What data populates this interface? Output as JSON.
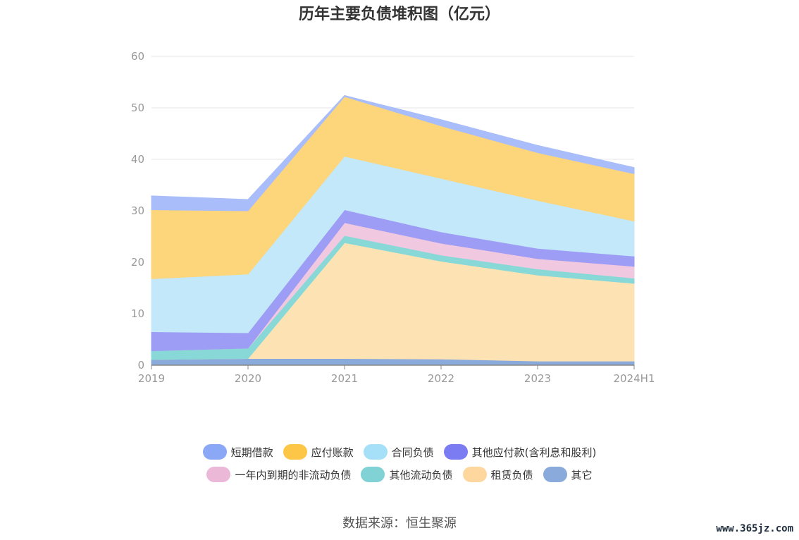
{
  "chart_data": {
    "type": "area",
    "stacked": true,
    "title": "历年主要负债堆积图（亿元）",
    "categories": [
      "2019",
      "2020",
      "2021",
      "2022",
      "2023",
      "2024H1"
    ],
    "ylim": [
      0,
      60
    ],
    "yticks": [
      "0",
      "10",
      "20",
      "30",
      "40",
      "50",
      "60"
    ],
    "grid": true,
    "legend_position": "bottom",
    "series": [
      {
        "name": "其它",
        "color": "#8aaadb",
        "values": [
          1.1,
          1.3,
          1.3,
          1.2,
          0.8,
          0.8
        ]
      },
      {
        "name": "租赁负债",
        "color": "#fde3b4",
        "values": [
          0,
          0,
          22.5,
          19.0,
          16.7,
          15.1
        ]
      },
      {
        "name": "其他流动负债",
        "color": "#88d8d8",
        "values": [
          1.7,
          2.0,
          1.4,
          1.2,
          1.2,
          1.0
        ]
      },
      {
        "name": "一年内到期的非流动负债",
        "color": "#f0c8e0",
        "values": [
          0,
          0,
          2.5,
          2.3,
          2.0,
          2.3
        ]
      },
      {
        "name": "其他应付款(含利息和股利)",
        "color": "#9d9df5",
        "values": [
          3.7,
          3.0,
          2.5,
          2.2,
          2.0,
          2.0
        ]
      },
      {
        "name": "合同负债",
        "color": "#c2e8f9",
        "values": [
          10.3,
          11.4,
          10.4,
          10.4,
          9.3,
          6.8
        ]
      },
      {
        "name": "应付账款",
        "color": "#fdd57a",
        "values": [
          13.4,
          12.3,
          11.6,
          10.2,
          9.3,
          9.2
        ]
      },
      {
        "name": "短期借款",
        "color": "#a8bdf9",
        "values": [
          2.7,
          2.2,
          0.2,
          1.2,
          1.4,
          1.2
        ]
      }
    ]
  },
  "legend": {
    "row1": [
      {
        "name": "短期借款",
        "color": "#8ba8f7"
      },
      {
        "name": "应付账款",
        "color": "#fdc647"
      },
      {
        "name": "合同负债",
        "color": "#a6dff8"
      },
      {
        "name": "其他应付款(含利息和股利)",
        "color": "#7b7cf2"
      }
    ],
    "row2": [
      {
        "name": "一年内到期的非流动负债",
        "color": "#ebb8d8"
      },
      {
        "name": "其他流动负债",
        "color": "#80d2d4"
      },
      {
        "name": "租赁负债",
        "color": "#fdd79e"
      },
      {
        "name": "其它",
        "color": "#8aaadb"
      }
    ]
  },
  "source_text": "数据来源：恒生聚源",
  "watermark": "www.365jz.com"
}
